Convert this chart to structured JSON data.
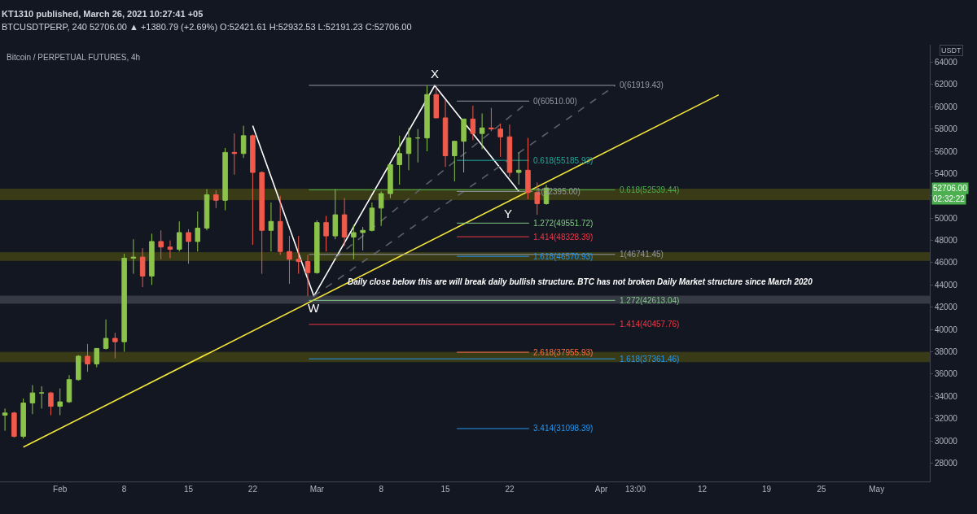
{
  "chart_data": {
    "type": "candlestick",
    "title": "KT1310 published, March 26, 2021 10:27:41 +05",
    "subtitle": "BTCUSDTPERP, 240 52706.00 ▲ +1380.79 (+2.69%) O:52421.61 H:52932.53 L:52191.23 C:52706.00",
    "ylabel": "USDT",
    "x": [
      "2021-01-26",
      "2021-01-27",
      "2021-01-28",
      "2021-01-29",
      "2021-01-30",
      "2021-01-31",
      "2021-02-01",
      "2021-02-02",
      "2021-02-03",
      "2021-02-04",
      "2021-02-05",
      "2021-02-06",
      "2021-02-07",
      "2021-02-08",
      "2021-02-09",
      "2021-02-10",
      "2021-02-11",
      "2021-02-12",
      "2021-02-13",
      "2021-02-14",
      "2021-02-15",
      "2021-02-16",
      "2021-02-17",
      "2021-02-18",
      "2021-02-19",
      "2021-02-20",
      "2021-02-21",
      "2021-02-22",
      "2021-02-23",
      "2021-02-24",
      "2021-02-25",
      "2021-02-26",
      "2021-02-27",
      "2021-02-28",
      "2021-03-01",
      "2021-03-02",
      "2021-03-03",
      "2021-03-04",
      "2021-03-05",
      "2021-03-06",
      "2021-03-07",
      "2021-03-08",
      "2021-03-09",
      "2021-03-10",
      "2021-03-11",
      "2021-03-12",
      "2021-03-13",
      "2021-03-14",
      "2021-03-15",
      "2021-03-16",
      "2021-03-17",
      "2021-03-18",
      "2021-03-19",
      "2021-03-20",
      "2021-03-21",
      "2021-03-22",
      "2021-03-23",
      "2021-03-24",
      "2021-03-25",
      "2021-03-26"
    ],
    "ohlc": [
      [
        32300,
        32900,
        30900,
        32500
      ],
      [
        32500,
        32600,
        30300,
        30400
      ],
      [
        30400,
        33800,
        30200,
        33400
      ],
      [
        33400,
        35000,
        32400,
        34300
      ],
      [
        34300,
        34900,
        32900,
        34300
      ],
      [
        34300,
        34400,
        32300,
        33100
      ],
      [
        33100,
        34700,
        32300,
        33500
      ],
      [
        33500,
        35900,
        33400,
        35500
      ],
      [
        35500,
        37700,
        35400,
        37600
      ],
      [
        37600,
        38700,
        36200,
        36900
      ],
      [
        36900,
        38300,
        36600,
        38300
      ],
      [
        38300,
        40900,
        38200,
        39200
      ],
      [
        39200,
        39700,
        37400,
        38900
      ],
      [
        38900,
        46800,
        38000,
        46400
      ],
      [
        46400,
        48100,
        45000,
        46500
      ],
      [
        46500,
        47300,
        43800,
        44800
      ],
      [
        44800,
        48600,
        44000,
        47900
      ],
      [
        47900,
        48900,
        46300,
        47400
      ],
      [
        47400,
        48000,
        46400,
        47200
      ],
      [
        47200,
        49700,
        47000,
        48700
      ],
      [
        48700,
        49000,
        45900,
        47900
      ],
      [
        47900,
        50600,
        47000,
        49100
      ],
      [
        49100,
        52600,
        48900,
        52100
      ],
      [
        52100,
        52500,
        50900,
        51600
      ],
      [
        51600,
        56300,
        50700,
        55900
      ],
      [
        55900,
        57600,
        53900,
        55800
      ],
      [
        55800,
        58300,
        55400,
        57400
      ],
      [
        57400,
        57500,
        47600,
        54100
      ],
      [
        54100,
        54200,
        45000,
        48900
      ],
      [
        48900,
        51400,
        47000,
        49700
      ],
      [
        49700,
        52000,
        46700,
        47000
      ],
      [
        47000,
        48400,
        44100,
        46300
      ],
      [
        46300,
        48400,
        45000,
        46100
      ],
      [
        46100,
        46700,
        43000,
        45100
      ],
      [
        45100,
        49800,
        45000,
        49600
      ],
      [
        49600,
        50200,
        47000,
        48400
      ],
      [
        48400,
        52600,
        48100,
        50300
      ],
      [
        50300,
        51800,
        47500,
        48300
      ],
      [
        48300,
        49400,
        46300,
        48700
      ],
      [
        48700,
        49200,
        47100,
        48900
      ],
      [
        48900,
        51400,
        48800,
        50900
      ],
      [
        50900,
        52400,
        49300,
        52200
      ],
      [
        52200,
        54900,
        51800,
        54800
      ],
      [
        54800,
        57400,
        53000,
        55800
      ],
      [
        55800,
        58100,
        54300,
        57200
      ],
      [
        57200,
        58000,
        55000,
        57200
      ],
      [
        57200,
        61900,
        56000,
        61100
      ],
      [
        61100,
        61700,
        59000,
        59000
      ],
      [
        59000,
        60600,
        54600,
        55600
      ],
      [
        55600,
        56900,
        53300,
        56900
      ],
      [
        56900,
        58900,
        54100,
        58900
      ],
      [
        58900,
        60100,
        57000,
        57600
      ],
      [
        57600,
        59400,
        56200,
        58100
      ],
      [
        58100,
        59900,
        57800,
        58000
      ],
      [
        58000,
        58500,
        55500,
        57300
      ],
      [
        57300,
        58400,
        53700,
        54100
      ],
      [
        54100,
        55900,
        53000,
        54300
      ],
      [
        54300,
        57200,
        51700,
        52300
      ],
      [
        52300,
        53200,
        50300,
        51300
      ],
      [
        51300,
        53000,
        51200,
        52706
      ]
    ],
    "colors": [
      "#8bc34a",
      "#f05a4a",
      "#8bc34a",
      "#8bc34a",
      "#8bc34a",
      "#f05a4a",
      "#8bc34a",
      "#8bc34a",
      "#8bc34a",
      "#f05a4a",
      "#8bc34a",
      "#8bc34a",
      "#f05a4a",
      "#8bc34a",
      "#8bc34a",
      "#f05a4a",
      "#8bc34a",
      "#f05a4a",
      "#f05a4a",
      "#8bc34a",
      "#f05a4a",
      "#8bc34a",
      "#8bc34a",
      "#f05a4a",
      "#8bc34a",
      "#f05a4a",
      "#8bc34a",
      "#f05a4a",
      "#f05a4a",
      "#8bc34a",
      "#f05a4a",
      "#f05a4a",
      "#f05a4a",
      "#f05a4a",
      "#8bc34a",
      "#f05a4a",
      "#8bc34a",
      "#f05a4a",
      "#8bc34a",
      "#8bc34a",
      "#8bc34a",
      "#8bc34a",
      "#8bc34a",
      "#8bc34a",
      "#8bc34a",
      "#8bc34a",
      "#8bc34a",
      "#f05a4a",
      "#f05a4a",
      "#8bc34a",
      "#8bc34a",
      "#f05a4a",
      "#8bc34a",
      "#f05a4a",
      "#f05a4a",
      "#f05a4a",
      "#8bc34a",
      "#f05a4a",
      "#f05a4a",
      "#8bc34a"
    ],
    "series": [
      {
        "type": "line",
        "color": "#f5e63a",
        "x": [
          "2021-01-28",
          "2021-04-13T19:00"
        ],
        "values": [
          29430,
          61070
        ]
      },
      {
        "type": "line",
        "color": "#ffffff",
        "x": [
          "2021-02-22",
          "2021-02-28T16:00",
          "2021-03-13T20:00",
          "2021-03-23"
        ],
        "values": [
          58300,
          43000,
          61900,
          52400
        ]
      },
      {
        "type": "line",
        "color": "#5d606b",
        "line_style": "dashed",
        "x": [
          "2021-02-28T16:00",
          "2021-04-02T12:00"
        ],
        "values": [
          43000,
          61900
        ]
      },
      {
        "type": "line",
        "color": "#5d606b",
        "line_style": "dashed",
        "x": [
          "2021-03-03",
          "2021-03-24T03:00"
        ],
        "values": [
          46400,
          60510
        ]
      },
      {
        "type": "line",
        "name": "0(61919.43)",
        "color": "#9598a1",
        "x": [
          "2021-02-28T03:00",
          "2021-04-02T12:00"
        ],
        "values": [
          61919.43,
          61919.43
        ]
      },
      {
        "type": "line",
        "name": "0(60510.00)",
        "color": "#9598a1",
        "x": [
          "2021-03-16T06:00",
          "2021-03-24T03:00"
        ],
        "values": [
          60510.0,
          60510.0
        ]
      },
      {
        "type": "line",
        "name": "0.618(55185.93)",
        "color": "#26a69a",
        "x": [
          "2021-03-16T06:00",
          "2021-03-24T03:00"
        ],
        "values": [
          55185.93,
          55185.93
        ]
      },
      {
        "type": "line",
        "name": "0.618(52539.44)",
        "color": "#4caf50",
        "x": [
          "2021-02-28T03:00",
          "2021-04-02T12:00"
        ],
        "values": [
          52539.44,
          52539.44
        ]
      },
      {
        "type": "line",
        "name": "1(52395.00)",
        "color": "#9598a1",
        "x": [
          "2021-03-16T06:00",
          "2021-03-24T12:00"
        ],
        "values": [
          52395.0,
          52395.0
        ]
      },
      {
        "type": "line",
        "name": "1.272(49551.72)",
        "color": "#81c784",
        "x": [
          "2021-03-16T06:00",
          "2021-03-24T03:00"
        ],
        "values": [
          49551.72,
          49551.72
        ]
      },
      {
        "type": "line",
        "name": "1.414(48328.39)",
        "color": "#f23645",
        "x": [
          "2021-03-16T06:00",
          "2021-03-24T03:00"
        ],
        "values": [
          48328.39,
          48328.39
        ]
      },
      {
        "type": "line",
        "name": "1(46741.45)",
        "color": "#9598a1",
        "x": [
          "2021-02-28T03:00",
          "2021-04-02T12:00"
        ],
        "values": [
          46741.45,
          46741.45
        ]
      },
      {
        "type": "line",
        "name": "1.618(46570.93)",
        "color": "#2196f3",
        "x": [
          "2021-03-16T06:00",
          "2021-03-24T03:00"
        ],
        "values": [
          46570.93,
          46570.93
        ]
      },
      {
        "type": "line",
        "name": "1.272(42613.04)",
        "color": "#81c784",
        "x": [
          "2021-02-28T03:00",
          "2021-04-02T12:00"
        ],
        "values": [
          42613.04,
          42613.04
        ]
      },
      {
        "type": "line",
        "name": "1.414(40457.76)",
        "color": "#f23645",
        "x": [
          "2021-02-28T03:00",
          "2021-04-02T12:00"
        ],
        "values": [
          40457.76,
          40457.76
        ]
      },
      {
        "type": "line",
        "name": "2.618(37955.93)",
        "color": "#ff7043",
        "x": [
          "2021-03-16T06:00",
          "2021-03-24T03:00"
        ],
        "values": [
          37955.93,
          37955.93
        ]
      },
      {
        "type": "line",
        "name": "1.618(37361.46)",
        "color": "#2196f3",
        "x": [
          "2021-02-28T03:00",
          "2021-04-02T12:00"
        ],
        "values": [
          37361.46,
          37361.46
        ]
      },
      {
        "type": "line",
        "name": "3.414(31098.39)",
        "color": "#2196f3",
        "x": [
          "2021-03-16T06:00",
          "2021-03-24T03:00"
        ],
        "values": [
          31098.39,
          31098.39
        ]
      }
    ],
    "bands": [
      {
        "axis": "y",
        "from": 51650,
        "to": 52600,
        "color": "#808000"
      },
      {
        "axis": "y",
        "from": 46200,
        "to": 46900,
        "color": "#808000"
      },
      {
        "axis": "y",
        "from": 42350,
        "to": 43000,
        "color": "#787b86"
      },
      {
        "axis": "y",
        "from": 37100,
        "to": 37950,
        "color": "#808000"
      }
    ],
    "annotations": [
      "Bitcoin / PERPETUAL FUTURES, 4h",
      {
        "text": "X",
        "x": "2021-03-13T20:00",
        "y": 61900
      },
      {
        "text": "W",
        "x": "2021-02-28T16:00",
        "y": 43000
      },
      {
        "text": "Y",
        "x": "2021-03-24T03:00",
        "y": 49551.72
      },
      {
        "text": "Daily close below this are will break daily bullish structure. BTC has not broken Daily Market structure since March 2020",
        "x": "2021-03-27",
        "y": 43000
      },
      "52706.00",
      "02:32:22"
    ],
    "xlim": [
      "2021-01-25T11:00",
      "2021-05-06T19:00"
    ],
    "xticks": [
      {
        "value": "2021-02-01",
        "label": "Feb"
      },
      {
        "value": "2021-02-08",
        "label": "8"
      },
      {
        "value": "2021-02-15",
        "label": "15"
      },
      {
        "value": "2021-02-22",
        "label": "22"
      },
      {
        "value": "2021-03-01",
        "label": "Mar"
      },
      {
        "value": "2021-03-08",
        "label": "8"
      },
      {
        "value": "2021-03-15",
        "label": "15"
      },
      {
        "value": "2021-03-22",
        "label": "22"
      },
      {
        "value": "2021-04-01",
        "label": "Apr"
      },
      {
        "value": "2021-04-04T17:00",
        "label": "13:00"
      },
      {
        "value": "2021-04-12",
        "label": "12"
      },
      {
        "value": "2021-04-19",
        "label": "19"
      },
      {
        "value": "2021-04-25",
        "label": "25"
      },
      {
        "value": "2021-05-01",
        "label": "May"
      }
    ],
    "ylim": [
      26350,
      65570
    ],
    "yticks": [
      28000,
      30000,
      32000,
      34000,
      36000,
      38000,
      40000,
      42000,
      44000,
      46000,
      48000,
      50000,
      {
        "value": 52000,
        "label": null
      },
      54000,
      56000,
      58000,
      60000,
      62000,
      64000
    ],
    "grid": false,
    "legend": false
  }
}
